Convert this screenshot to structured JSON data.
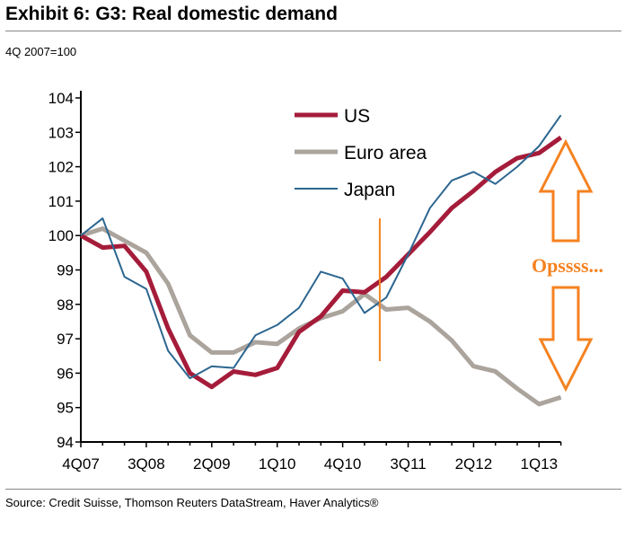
{
  "title": "Exhibit 6: G3: Real domestic demand",
  "subtitle": "4Q 2007=100",
  "source": "Source: Credit Suisse, Thomson Reuters DataStream, Haver Analytics®",
  "chart_data": {
    "type": "line",
    "title": "Exhibit 6: G3: Real domestic demand",
    "ylabel": "4Q 2007=100",
    "ylim": [
      94,
      104
    ],
    "yticks": [
      "94",
      "95",
      "96",
      "97",
      "98",
      "99",
      "100",
      "101",
      "102",
      "103",
      "104"
    ],
    "x": [
      "4Q07",
      "1Q08",
      "2Q08",
      "3Q08",
      "4Q08",
      "1Q09",
      "2Q09",
      "3Q09",
      "4Q09",
      "1Q10",
      "2Q10",
      "3Q10",
      "4Q10",
      "1Q11",
      "2Q11",
      "3Q11",
      "4Q11",
      "1Q12",
      "2Q12",
      "3Q12",
      "4Q12",
      "1Q13",
      "2Q13"
    ],
    "xtick_labels": [
      "4Q07",
      "3Q08",
      "2Q09",
      "1Q10",
      "4Q10",
      "3Q11",
      "2Q12",
      "1Q13"
    ],
    "legend_position": "top-center",
    "series": [
      {
        "name": "US",
        "color": "#a51c3a",
        "values": [
          100,
          99.65,
          99.7,
          98.95,
          97.3,
          96.0,
          95.6,
          96.05,
          95.95,
          96.15,
          97.2,
          97.65,
          98.4,
          98.35,
          98.8,
          99.45,
          100.1,
          100.8,
          101.3,
          101.85,
          102.25,
          102.4,
          102.85
        ]
      },
      {
        "name": "Euro area",
        "color": "#aba49d",
        "values": [
          100,
          100.2,
          99.85,
          99.5,
          98.6,
          97.1,
          96.6,
          96.6,
          96.9,
          96.85,
          97.3,
          97.6,
          97.8,
          98.3,
          97.85,
          97.9,
          97.5,
          96.95,
          96.2,
          96.05,
          95.55,
          95.1,
          95.3
        ]
      },
      {
        "name": "Japan",
        "color": "#2c6690",
        "values": [
          100,
          100.5,
          98.8,
          98.45,
          96.65,
          95.85,
          96.2,
          96.15,
          97.1,
          97.4,
          97.9,
          98.95,
          98.75,
          97.75,
          98.2,
          99.45,
          100.8,
          101.6,
          101.85,
          101.5,
          102.0,
          102.6,
          103.5
        ]
      }
    ],
    "annotations": {
      "text": "Opssss...",
      "color": "#f58220",
      "divider_at_quarter_index": 13.7
    }
  }
}
